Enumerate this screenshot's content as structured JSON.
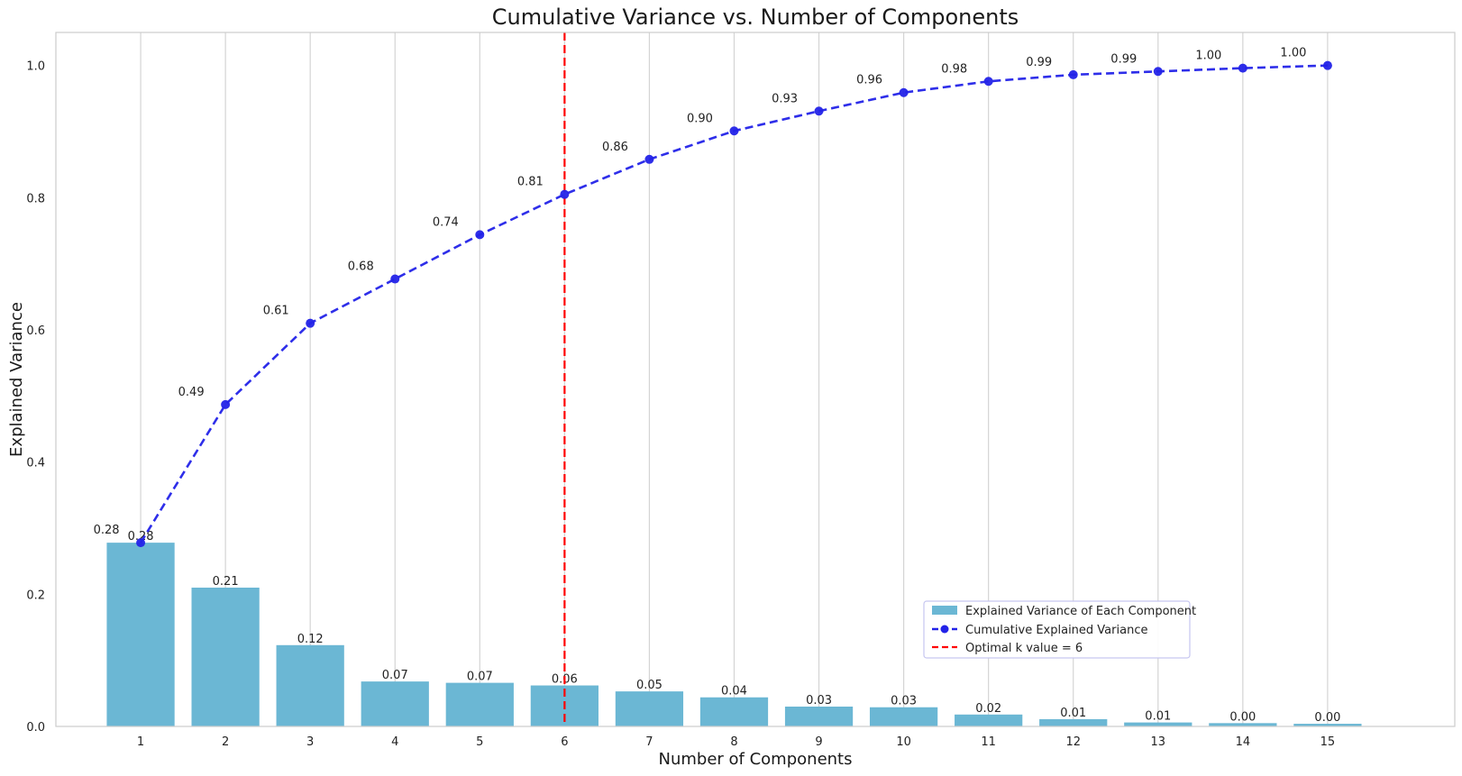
{
  "chart_data": {
    "type": "bar",
    "title": "Cumulative Variance vs. Number of Components",
    "xlabel": "Number of Components",
    "ylabel": "Explained Variance",
    "categories": [
      1,
      2,
      3,
      4,
      5,
      6,
      7,
      8,
      9,
      10,
      11,
      12,
      13,
      14,
      15
    ],
    "xlim": [
      0.0,
      16.5
    ],
    "ylim": [
      0,
      1.05
    ],
    "yticks": [
      0.0,
      0.2,
      0.4,
      0.6,
      0.8,
      1.0
    ],
    "grid": "vertical",
    "legend_position": "lower-right",
    "series": [
      {
        "name": "Explained Variance of Each Component",
        "type": "bar",
        "color": "#6bb7d4",
        "values": [
          0.278,
          0.21,
          0.123,
          0.068,
          0.066,
          0.062,
          0.053,
          0.044,
          0.03,
          0.029,
          0.018,
          0.011,
          0.006,
          0.005,
          0.004
        ],
        "labels": [
          "0.28",
          "0.21",
          "0.12",
          "0.07",
          "0.07",
          "0.06",
          "0.05",
          "0.04",
          "0.03",
          "0.03",
          "0.02",
          "0.01",
          "0.01",
          "0.00",
          "0.00"
        ]
      },
      {
        "name": "Cumulative Explained Variance",
        "type": "line",
        "color": "#2323e8",
        "style": "dashed",
        "marker": "circle",
        "values": [
          0.278,
          0.487,
          0.61,
          0.677,
          0.744,
          0.805,
          0.858,
          0.901,
          0.931,
          0.959,
          0.976,
          0.986,
          0.991,
          0.996,
          1.0
        ],
        "labels": [
          "0.28",
          "0.49",
          "0.61",
          "0.68",
          "0.74",
          "0.81",
          "0.86",
          "0.90",
          "0.93",
          "0.96",
          "0.98",
          "0.99",
          "0.99",
          "1.00",
          "1.00"
        ]
      }
    ],
    "annotations": [
      {
        "type": "vline",
        "x": 6,
        "color": "#ff0000",
        "style": "dashed",
        "label": "Optimal k value = 6"
      }
    ]
  }
}
